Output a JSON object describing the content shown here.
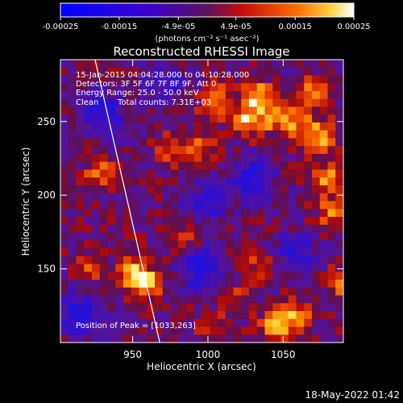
{
  "colorbar": {
    "ticks": [
      "-0.00025",
      "-0.00015",
      "-4.9e-05",
      "4.9e-05",
      "0.00015",
      "0.00025"
    ],
    "tick_values": [
      -0.00025,
      -0.00015,
      -4.9e-05,
      4.9e-05,
      0.00015,
      0.00025
    ],
    "range": [
      -0.00025,
      0.00025
    ],
    "units_label": "(photons cm⁻² s⁻¹ asec⁻²)"
  },
  "chart_data": {
    "type": "heatmap",
    "title": "Reconstructed RHESSI Image",
    "xlabel": "Heliocentric X (arcsec)",
    "ylabel": "Heliocentric Y (arcsec)",
    "xlim": [
      902,
      1090
    ],
    "ylim": [
      100,
      292
    ],
    "xticks": [
      "950",
      "1000",
      "1050"
    ],
    "xtick_values": [
      950,
      1000,
      1050
    ],
    "yticks": [
      "150",
      "200",
      "250"
    ],
    "ytick_values": [
      150,
      200,
      250
    ],
    "limb_line": [
      [
        925,
        292
      ],
      [
        968,
        100
      ]
    ],
    "peak": [
      1033,
      263
    ],
    "hotspots": [
      {
        "x": 1033,
        "y": 266,
        "intensity": 1.0
      },
      {
        "x": 1005,
        "y": 264,
        "intensity": 0.8
      },
      {
        "x": 1024,
        "y": 250,
        "intensity": 0.85
      },
      {
        "x": 1044,
        "y": 252,
        "intensity": 0.7
      },
      {
        "x": 1060,
        "y": 250,
        "intensity": 0.7
      },
      {
        "x": 1075,
        "y": 240,
        "intensity": 0.75
      },
      {
        "x": 1080,
        "y": 212,
        "intensity": 0.75
      },
      {
        "x": 1082,
        "y": 188,
        "intensity": 0.55
      },
      {
        "x": 1070,
        "y": 270,
        "intensity": 0.6
      },
      {
        "x": 958,
        "y": 140,
        "intensity": 0.9
      },
      {
        "x": 950,
        "y": 148,
        "intensity": 0.75
      },
      {
        "x": 928,
        "y": 215,
        "intensity": 0.55
      },
      {
        "x": 975,
        "y": 230,
        "intensity": 0.5
      },
      {
        "x": 995,
        "y": 232,
        "intensity": 0.5
      },
      {
        "x": 1045,
        "y": 110,
        "intensity": 0.8
      },
      {
        "x": 1058,
        "y": 118,
        "intensity": 0.7
      },
      {
        "x": 1015,
        "y": 130,
        "intensity": 0.45
      },
      {
        "x": 1035,
        "y": 150,
        "intensity": 0.45
      },
      {
        "x": 920,
        "y": 150,
        "intensity": 0.45
      },
      {
        "x": 985,
        "y": 170,
        "intensity": 0.4
      },
      {
        "x": 1003,
        "y": 110,
        "intensity": 0.4
      },
      {
        "x": 1088,
        "y": 140,
        "intensity": 0.55
      }
    ],
    "coldspots": [
      {
        "x": 930,
        "y": 255,
        "intensity": 0.9
      },
      {
        "x": 1030,
        "y": 210,
        "intensity": 0.9
      },
      {
        "x": 915,
        "y": 120,
        "intensity": 0.8
      },
      {
        "x": 995,
        "y": 150,
        "intensity": 0.8
      },
      {
        "x": 1060,
        "y": 160,
        "intensity": 0.7
      },
      {
        "x": 1000,
        "y": 195,
        "intensity": 0.7
      },
      {
        "x": 970,
        "y": 275,
        "intensity": 0.6
      }
    ],
    "annotations": {
      "time": "15-Jan-2015 04:04:28.000 to 04:10:28.000",
      "detectors": "Detectors: 3F 5F 6F 7F 8F 9F, Att 0",
      "energy": "Energy Range: 25.0 - 50.0 keV",
      "clean_label": "Clean",
      "counts": "Total counts: 7.31E+03",
      "peak_label": "Position of Peak = [1033,263]"
    }
  },
  "footer": {
    "timestamp": "18-May-2022 01:42"
  }
}
